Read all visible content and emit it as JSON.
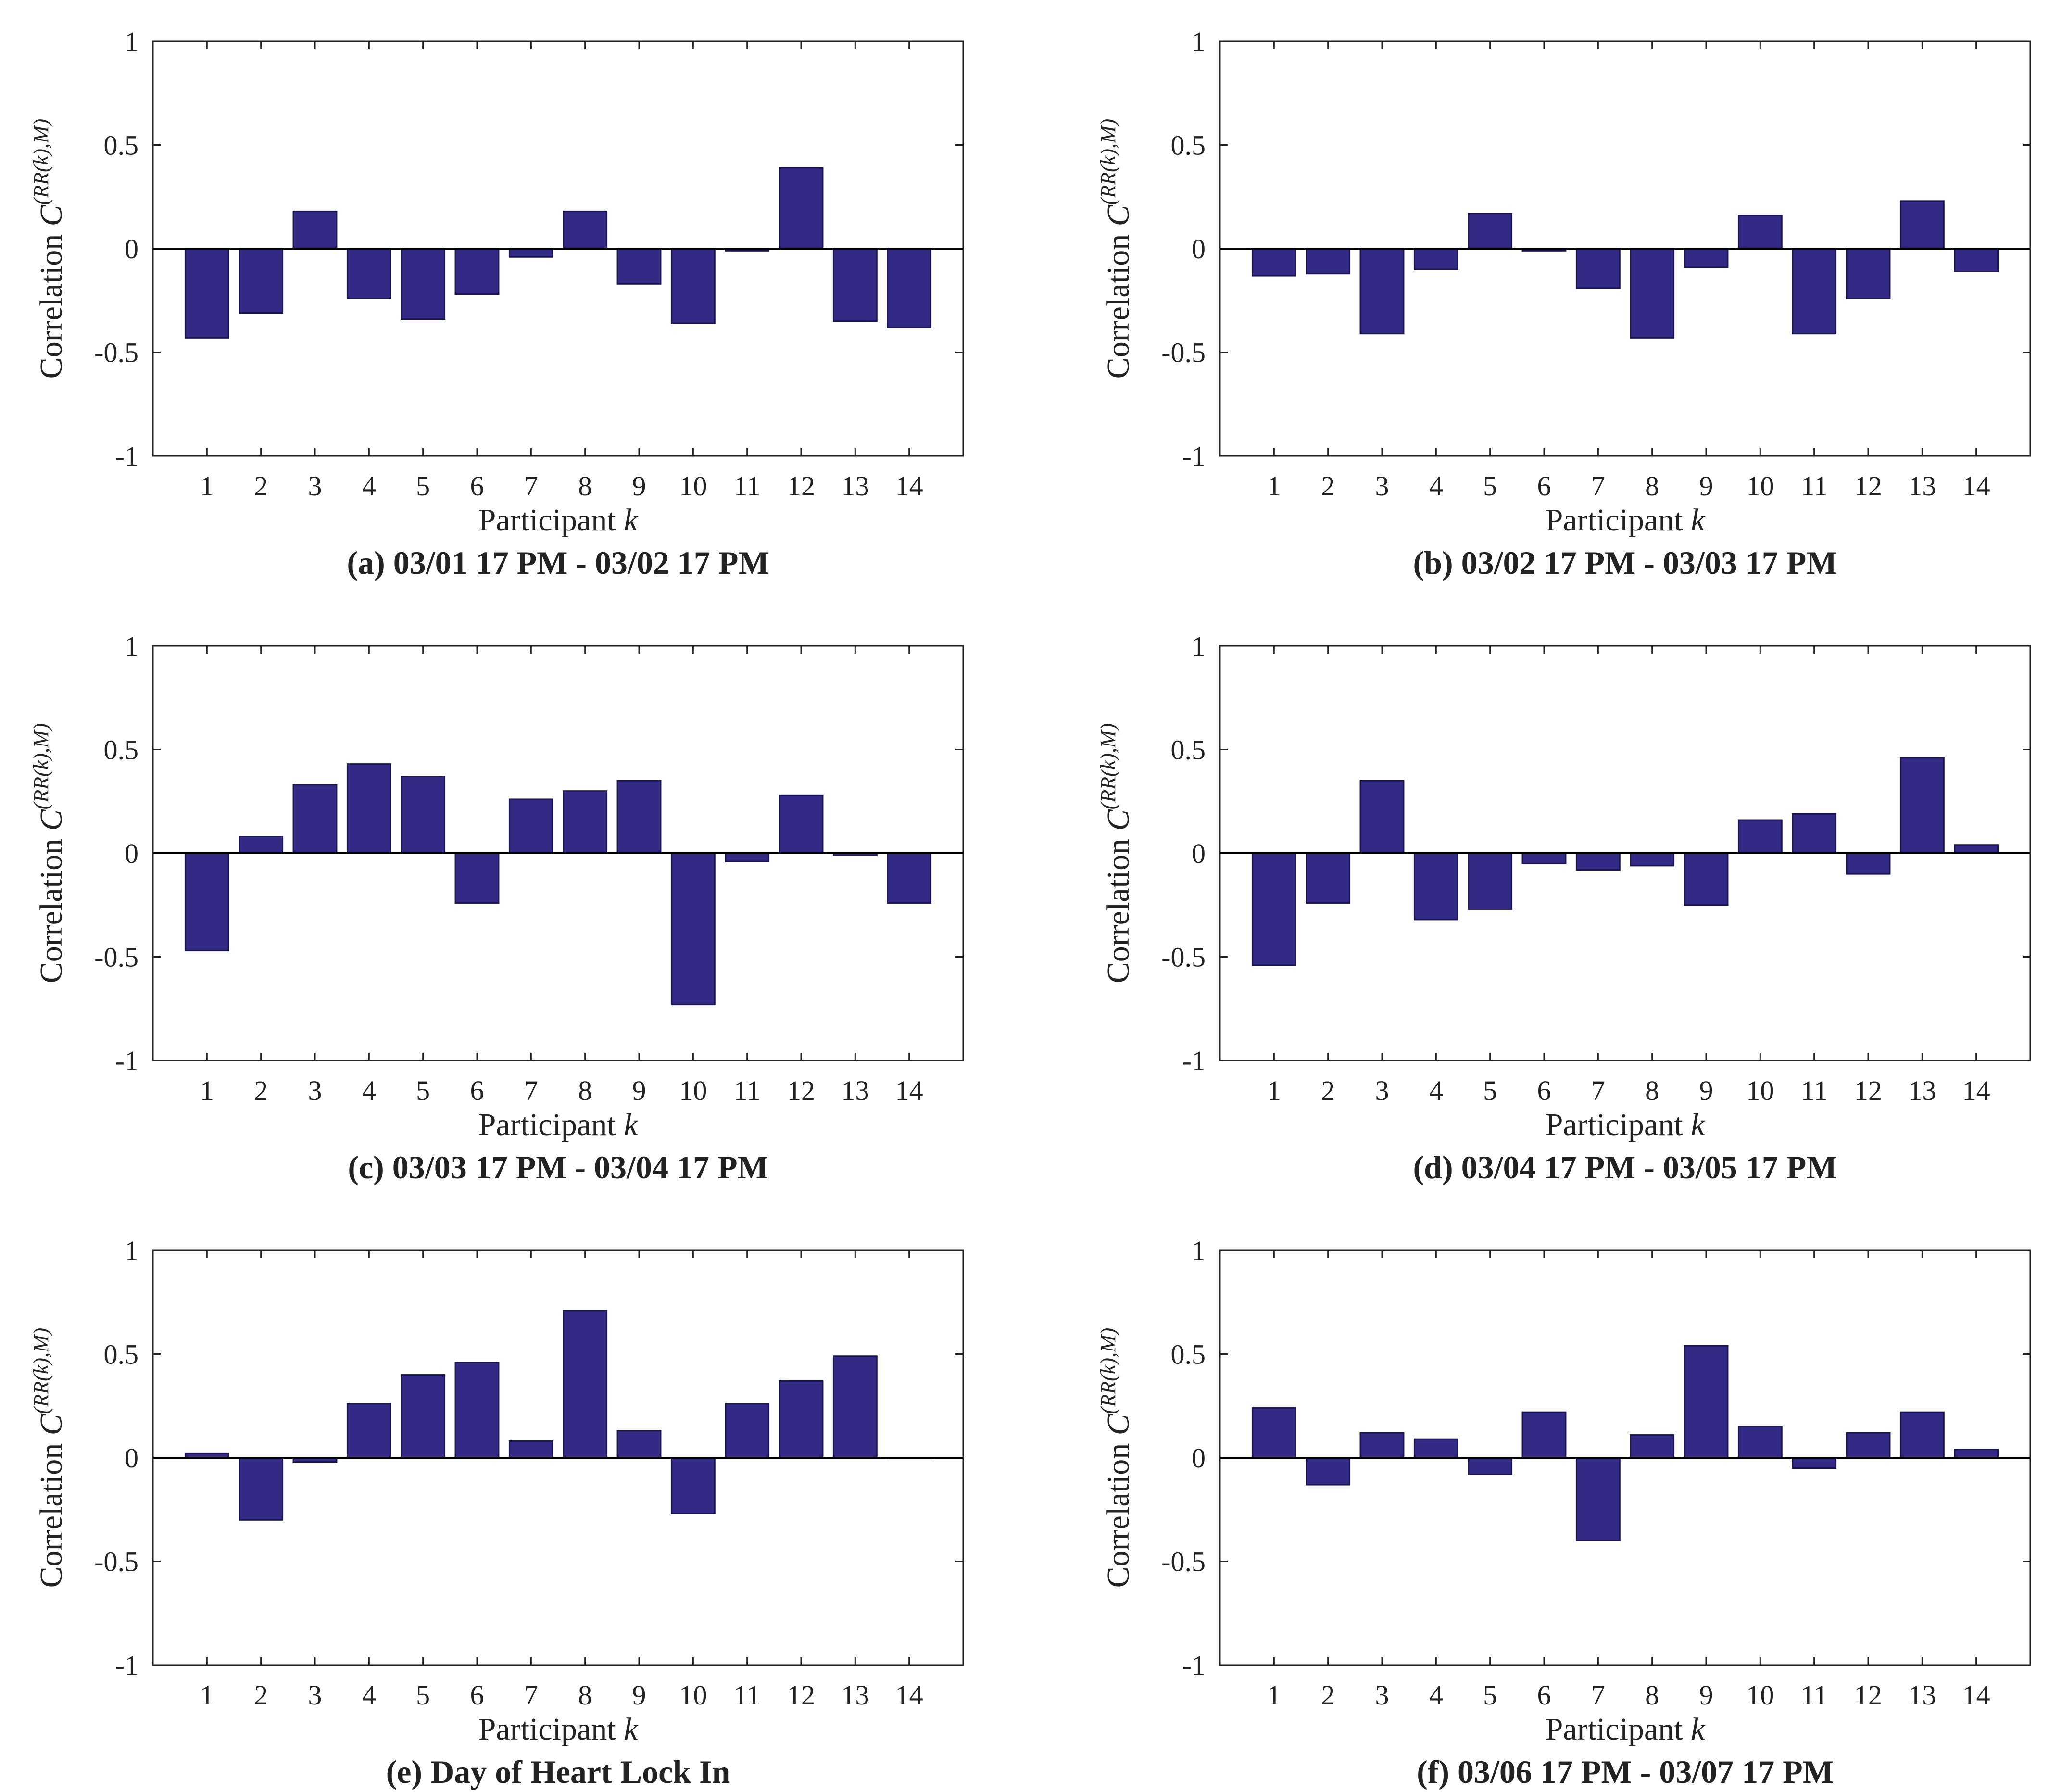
{
  "colors": {
    "bar": "#332a85",
    "bar_edge": "#1a154d",
    "axis": "#222222"
  },
  "chart_data": [
    {
      "id": "a",
      "type": "bar",
      "caption": "(a)  03/01 17 PM - 03/02 17 PM",
      "xlabel": "Participant k",
      "ylabel": "Correlation C(RR(k),M)",
      "ylim": [
        -1,
        1
      ],
      "yticks": [
        "-1",
        "-0.5",
        "0",
        "0.5",
        "1"
      ],
      "categories": [
        "1",
        "2",
        "3",
        "4",
        "5",
        "6",
        "7",
        "8",
        "9",
        "10",
        "11",
        "12",
        "13",
        "14"
      ],
      "values": [
        -0.43,
        -0.31,
        0.18,
        -0.24,
        -0.34,
        -0.22,
        -0.04,
        0.18,
        -0.17,
        -0.36,
        -0.01,
        0.39,
        -0.35,
        -0.38
      ]
    },
    {
      "id": "b",
      "type": "bar",
      "caption": "(b)  03/02 17 PM - 03/03 17 PM",
      "xlabel": "Participant k",
      "ylabel": "Correlation C(RR(k),M)",
      "ylim": [
        -1,
        1
      ],
      "yticks": [
        "-1",
        "-0.5",
        "0",
        "0.5",
        "1"
      ],
      "categories": [
        "1",
        "2",
        "3",
        "4",
        "5",
        "6",
        "7",
        "8",
        "9",
        "10",
        "11",
        "12",
        "13",
        "14"
      ],
      "values": [
        -0.13,
        -0.12,
        -0.41,
        -0.1,
        0.17,
        -0.01,
        -0.19,
        -0.43,
        -0.09,
        0.16,
        -0.41,
        -0.24,
        0.23,
        -0.11
      ]
    },
    {
      "id": "c",
      "type": "bar",
      "caption": "(c)  03/03 17 PM - 03/04 17 PM",
      "xlabel": "Participant k",
      "ylabel": "Correlation C(RR(k),M)",
      "ylim": [
        -1,
        1
      ],
      "yticks": [
        "-1",
        "-0.5",
        "0",
        "0.5",
        "1"
      ],
      "categories": [
        "1",
        "2",
        "3",
        "4",
        "5",
        "6",
        "7",
        "8",
        "9",
        "10",
        "11",
        "12",
        "13",
        "14"
      ],
      "values": [
        -0.47,
        0.08,
        0.33,
        0.43,
        0.37,
        -0.24,
        0.26,
        0.3,
        0.35,
        -0.73,
        -0.04,
        0.28,
        -0.01,
        -0.24
      ]
    },
    {
      "id": "d",
      "type": "bar",
      "caption": "(d)  03/04 17 PM - 03/05 17 PM",
      "xlabel": "Participant k",
      "ylabel": "Correlation C(RR(k),M)",
      "ylim": [
        -1,
        1
      ],
      "yticks": [
        "-1",
        "-0.5",
        "0",
        "0.5",
        "1"
      ],
      "categories": [
        "1",
        "2",
        "3",
        "4",
        "5",
        "6",
        "7",
        "8",
        "9",
        "10",
        "11",
        "12",
        "13",
        "14"
      ],
      "values": [
        -0.54,
        -0.24,
        0.35,
        -0.32,
        -0.27,
        -0.05,
        -0.08,
        -0.06,
        -0.25,
        0.16,
        0.19,
        -0.1,
        0.46,
        0.04
      ]
    },
    {
      "id": "e",
      "type": "bar",
      "caption": "(e) Day of Heart Lock In",
      "xlabel": "Participant k",
      "ylabel": "Correlation C(RR(k),M)",
      "ylim": [
        -1,
        1
      ],
      "yticks": [
        "-1",
        "-0.5",
        "0",
        "0.5",
        "1"
      ],
      "categories": [
        "1",
        "2",
        "3",
        "4",
        "5",
        "6",
        "7",
        "8",
        "9",
        "10",
        "11",
        "12",
        "13",
        "14"
      ],
      "values": [
        0.02,
        -0.3,
        -0.02,
        0.26,
        0.4,
        0.46,
        0.08,
        0.71,
        0.13,
        -0.27,
        0.26,
        0.37,
        0.49,
        0
      ]
    },
    {
      "id": "f",
      "type": "bar",
      "caption": "(f)  03/06 17 PM - 03/07 17 PM",
      "xlabel": "Participant k",
      "ylabel": "Correlation C(RR(k),M)",
      "ylim": [
        -1,
        1
      ],
      "yticks": [
        "-1",
        "-0.5",
        "0",
        "0.5",
        "1"
      ],
      "categories": [
        "1",
        "2",
        "3",
        "4",
        "5",
        "6",
        "7",
        "8",
        "9",
        "10",
        "11",
        "12",
        "13",
        "14"
      ],
      "values": [
        0.24,
        -0.13,
        0.12,
        0.09,
        -0.08,
        0.22,
        -0.4,
        0.11,
        0.54,
        0.15,
        -0.05,
        0.12,
        0.22,
        0.04
      ]
    }
  ]
}
